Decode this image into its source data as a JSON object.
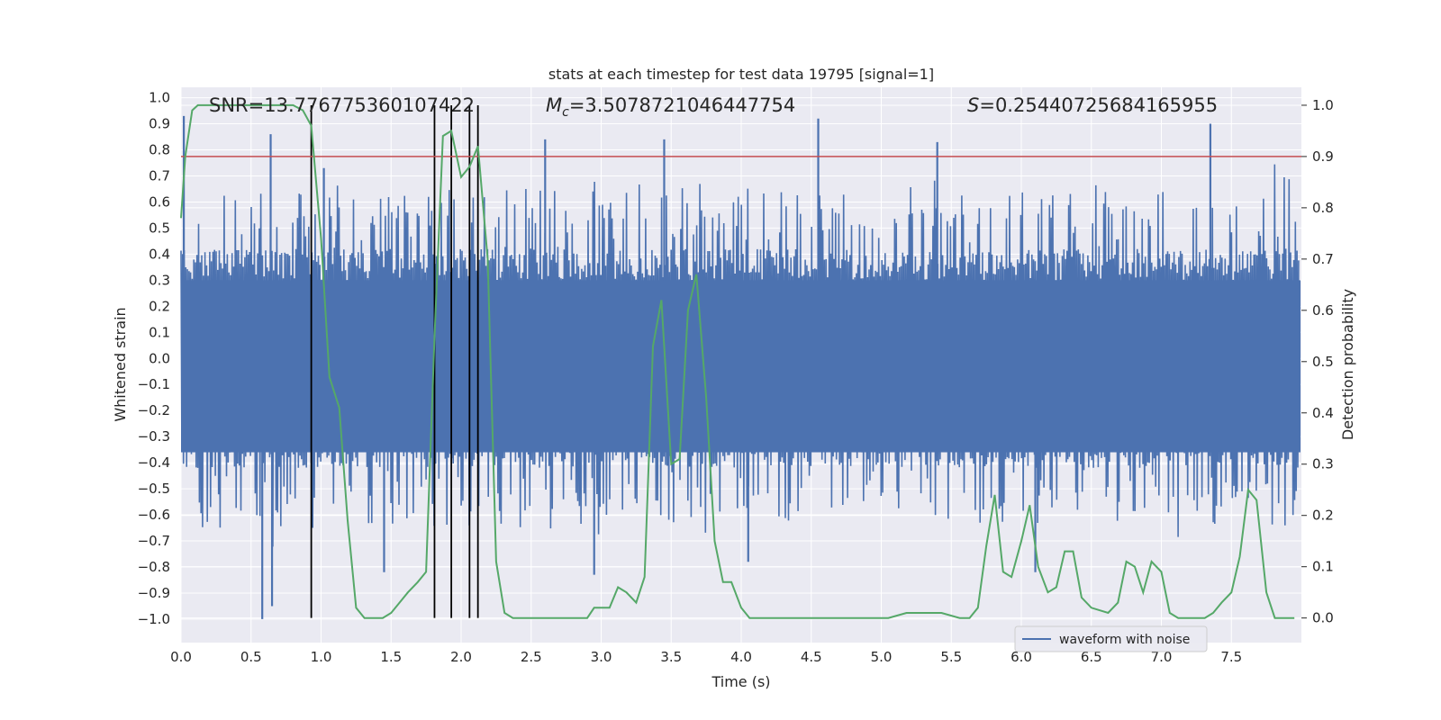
{
  "chart_data": {
    "type": "line",
    "title": "stats at each timestep for test data 19795 [signal=1]",
    "xlabel": "Time (s)",
    "ylabel": "Whitened strain",
    "y2label": "Detection probability",
    "xlim": [
      0.0,
      8.0
    ],
    "ylim": [
      -1.09,
      1.04
    ],
    "y2lim": [
      -0.048,
      1.035
    ],
    "xticks": [
      "0.0",
      "0.5",
      "1.0",
      "1.5",
      "2.0",
      "2.5",
      "3.0",
      "3.5",
      "4.0",
      "4.5",
      "5.0",
      "5.5",
      "6.0",
      "6.5",
      "7.0",
      "7.5"
    ],
    "yticks": [
      "1.0",
      "0.9",
      "0.8",
      "0.7",
      "0.6",
      "0.5",
      "0.4",
      "0.3",
      "0.2",
      "0.1",
      "0.0",
      "-0.1",
      "-0.2",
      "-0.3",
      "-0.4",
      "-0.5",
      "-0.6",
      "-0.7",
      "-0.8",
      "-0.9",
      "-1.0"
    ],
    "y2ticks": [
      "1.0",
      "0.9",
      "0.8",
      "0.7",
      "0.6",
      "0.5",
      "0.4",
      "0.3",
      "0.2",
      "0.1",
      "0.0"
    ],
    "annotations": {
      "snr": "SNR=13.776775360107422",
      "mc_symbol": "M",
      "mc_sub": "c",
      "mc_value": "=3.5078721046447754",
      "s_symbol": "S",
      "s_value": "=0.25440725684165955"
    },
    "threshold": 0.9,
    "event_lines_x": [
      0.93,
      1.81,
      1.93,
      2.06,
      2.12
    ],
    "legend": [
      "waveform with noise"
    ],
    "series": [
      {
        "name": "waveform with noise",
        "color": "#4c72b0",
        "axis": "left",
        "envelope_note": "dense noise; upper spikes and lower spikes approximated",
        "spikes": [
          [
            0.02,
            0.93
          ],
          [
            0.64,
            0.86
          ],
          [
            1.02,
            0.73
          ],
          [
            2.6,
            0.84
          ],
          [
            3.45,
            0.84
          ],
          [
            4.55,
            0.92
          ],
          [
            5.4,
            0.83
          ],
          [
            7.35,
            0.9
          ],
          [
            0.58,
            -1.0
          ],
          [
            0.65,
            -0.95
          ],
          [
            1.45,
            -0.82
          ],
          [
            2.95,
            -0.83
          ],
          [
            4.05,
            -0.78
          ],
          [
            6.1,
            -0.82
          ]
        ]
      },
      {
        "name": "detection probability",
        "color": "#55a868",
        "axis": "right",
        "x": [
          0.0,
          0.03,
          0.08,
          0.12,
          0.2,
          0.5,
          0.8,
          0.87,
          0.93,
          1.0,
          1.06,
          1.13,
          1.19,
          1.25,
          1.31,
          1.37,
          1.44,
          1.5,
          1.56,
          1.62,
          1.69,
          1.75,
          1.81,
          1.87,
          1.93,
          2.0,
          2.06,
          2.12,
          2.19,
          2.25,
          2.31,
          2.37,
          2.5,
          2.7,
          2.9,
          2.95,
          3.0,
          3.06,
          3.12,
          3.18,
          3.25,
          3.31,
          3.37,
          3.43,
          3.5,
          3.56,
          3.62,
          3.68,
          3.75,
          3.81,
          3.87,
          3.93,
          4.0,
          4.06,
          4.2,
          4.5,
          4.8,
          5.05,
          5.18,
          5.3,
          5.43,
          5.56,
          5.63,
          5.69,
          5.75,
          5.81,
          5.87,
          5.93,
          6.0,
          6.06,
          6.12,
          6.19,
          6.25,
          6.31,
          6.37,
          6.43,
          6.5,
          6.62,
          6.69,
          6.75,
          6.81,
          6.87,
          6.93,
          7.0,
          7.06,
          7.12,
          7.18,
          7.31,
          7.37,
          7.43,
          7.5,
          7.56,
          7.62,
          7.68,
          7.75,
          7.81,
          7.87,
          7.95
        ],
        "y": [
          0.78,
          0.9,
          0.99,
          1.0,
          1.0,
          1.0,
          1.0,
          0.99,
          0.96,
          0.74,
          0.47,
          0.41,
          0.19,
          0.02,
          0.0,
          0.0,
          0.0,
          0.01,
          0.03,
          0.05,
          0.07,
          0.09,
          0.55,
          0.94,
          0.95,
          0.86,
          0.88,
          0.92,
          0.7,
          0.11,
          0.01,
          0.0,
          0.0,
          0.0,
          0.0,
          0.02,
          0.02,
          0.02,
          0.06,
          0.05,
          0.03,
          0.08,
          0.53,
          0.62,
          0.3,
          0.31,
          0.6,
          0.67,
          0.43,
          0.15,
          0.07,
          0.07,
          0.02,
          0.0,
          0.0,
          0.0,
          0.0,
          0.0,
          0.01,
          0.01,
          0.01,
          0.0,
          0.0,
          0.02,
          0.14,
          0.24,
          0.09,
          0.08,
          0.15,
          0.22,
          0.1,
          0.05,
          0.06,
          0.13,
          0.13,
          0.04,
          0.02,
          0.01,
          0.03,
          0.11,
          0.1,
          0.05,
          0.11,
          0.09,
          0.01,
          0.0,
          0.0,
          0.0,
          0.01,
          0.03,
          0.05,
          0.12,
          0.25,
          0.23,
          0.05,
          0.0,
          0.0,
          0.0
        ]
      }
    ]
  }
}
